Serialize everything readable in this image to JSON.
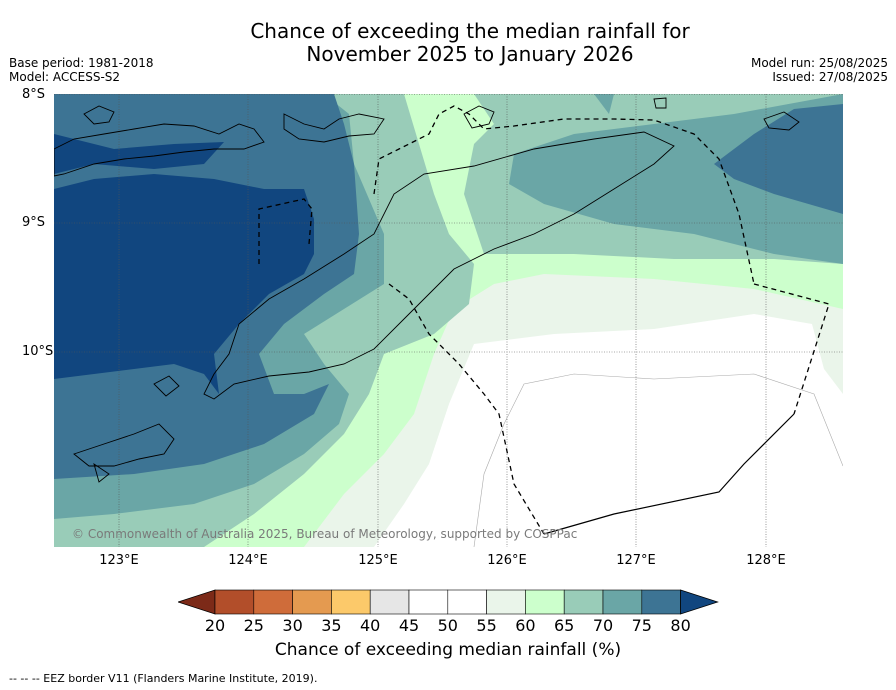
{
  "header": {
    "title_line1": "Chance of exceeding the median rainfall for",
    "title_line2": "November 2025 to January 2026",
    "base_period": "Base period: 1981-2018",
    "model": "Model: ACCESS-S2",
    "model_run": "Model run: 25/08/2025",
    "issued": "Issued: 27/08/2025"
  },
  "map": {
    "lat_labels": [
      "8°S",
      "9°S",
      "10°S"
    ],
    "lon_labels": [
      "123°E",
      "124°E",
      "125°E",
      "126°E",
      "127°E",
      "128°E"
    ],
    "copyright": "© Commonwealth of Australia 2025, Bureau of Meteorology, supported by COSPPac",
    "colors": {
      "c50_55": "#ffffff",
      "c55_60": "#eaf5ea",
      "c60_65": "#ccffcc",
      "c65_70": "#99ccb8",
      "c70_75": "#6aa6a6",
      "c75_80": "#3d7494",
      "c80plus": "#11467f"
    }
  },
  "colorbar": {
    "ticks": [
      "20",
      "25",
      "30",
      "35",
      "40",
      "45",
      "50",
      "55",
      "60",
      "65",
      "70",
      "75",
      "80"
    ],
    "colors": [
      "#7c2a18",
      "#b24e2a",
      "#cf6c3a",
      "#e49a50",
      "#fcc96a",
      "#e6e6e6",
      "#ffffff",
      "#ffffff",
      "#eaf5ea",
      "#ccffcc",
      "#99ccb8",
      "#6aa6a6",
      "#3d7494",
      "#11467f"
    ],
    "label": "Chance of exceeding median rainfall (%)"
  },
  "footnote": "--  --  -- EEZ border V11 (Flanders Marine Institute, 2019)."
}
